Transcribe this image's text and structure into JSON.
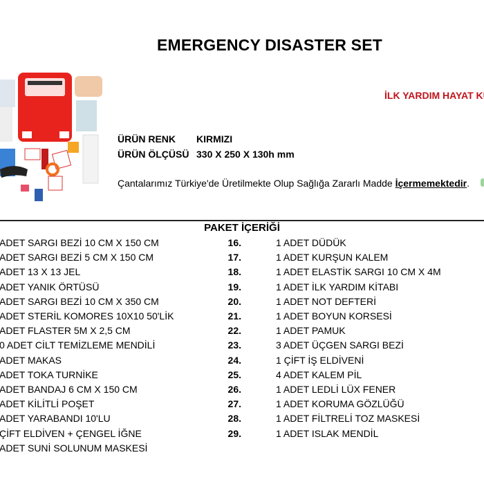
{
  "title": "EMERGENCY DISASTER SET",
  "tagline": "İLK YARDIM HAYAT KU",
  "colors": {
    "brand_red": "#c0141c",
    "crescent": "#d0101a"
  },
  "logo": "red-crescent-icon",
  "specs": [
    {
      "label": "ÜRÜN RENK",
      "value": "KIRMIZI"
    },
    {
      "label": "ÜRÜN ÖLÇÜSÜ",
      "value": "330 X 250 X 130h mm"
    }
  ],
  "note": {
    "text": "Çantalarımız Türkiye'de Üretilmekte Olup Sağlığa Zararlı Madde ",
    "emphasis": "İçermemektedir",
    "end": "."
  },
  "package": {
    "title": "PAKET İÇERİĞİ",
    "left_items": [
      "ADET SARGI BEZİ 10 CM X 150 CM",
      "ADET SARGI BEZİ 5 CM X 150 CM",
      "ADET 13 X 13 JEL",
      "ADET YANIK ÖRTÜSÜ",
      "ADET SARGI BEZİ 10 CM X 350 CM",
      "ADET STERİL KOMORES 10X10 50'LİK",
      "ADET FLASTER 5M X 2,5 CM",
      "0 ADET CİLT TEMİZLEME MENDİLİ",
      "ADET MAKAS",
      "ADET TOKA TURNİKE",
      "ADET BANDAJ 6 CM X 150 CM",
      "ADET KİLİTLİ POŞET",
      "ADET YARABANDI 10'LU",
      "ÇİFT ELDİVEN + ÇENGEL İĞNE",
      "ADET SUNİ SOLUNUM MASKESİ"
    ],
    "right_items": [
      {
        "num": "16.",
        "text": "1 ADET DÜDÜK"
      },
      {
        "num": "17.",
        "text": "1 ADET KURŞUN KALEM"
      },
      {
        "num": "18.",
        "text": "1 ADET ELASTİK SARGI 10 CM X 4M"
      },
      {
        "num": "19.",
        "text": "1 ADET İLK YARDIM KİTABI"
      },
      {
        "num": "20.",
        "text": "1 ADET NOT DEFTERİ"
      },
      {
        "num": "21.",
        "text": "1 ADET BOYUN KORSESİ"
      },
      {
        "num": "22.",
        "text": "1 ADET PAMUK"
      },
      {
        "num": "23.",
        "text": "3 ADET ÜÇGEN SARGI BEZİ"
      },
      {
        "num": "24.",
        "text": "1 ÇİFT İŞ ELDİVENİ"
      },
      {
        "num": "25.",
        "text": "4 ADET KALEM PİL"
      },
      {
        "num": "26.",
        "text": "1 ADET LEDLİ LÜX FENER"
      },
      {
        "num": "27.",
        "text": "1 ADET KORUMA GÖZLÜĞÜ"
      },
      {
        "num": "28.",
        "text": "1 ADET FİLTRELİ TOZ MASKESİ"
      },
      {
        "num": "29.",
        "text": "1 ADET ISLAK MENDİL"
      }
    ]
  }
}
